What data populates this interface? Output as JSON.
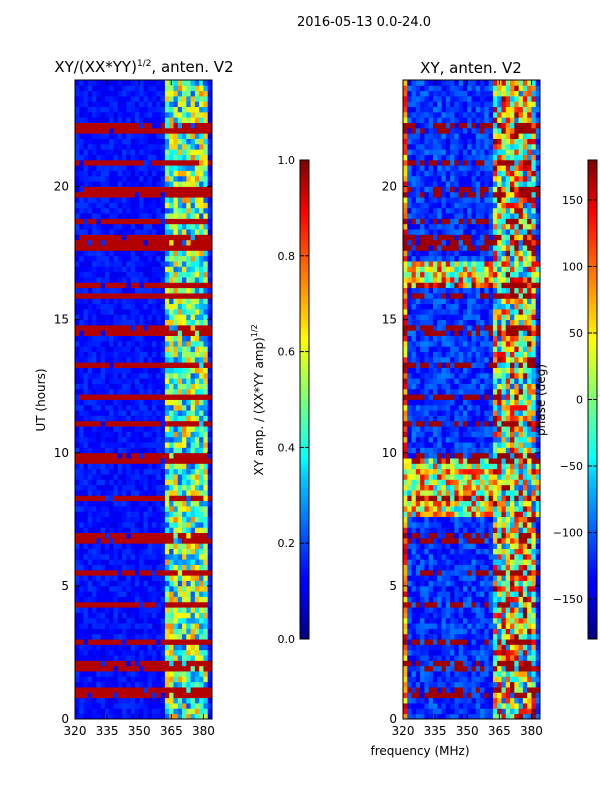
{
  "suptitle": "2016-05-13 0.0-24.0",
  "chart_data": [
    {
      "type": "heatmap",
      "title": "XY/(XX*YY)",
      "title_sup": "1/2",
      "title_suffix": ", anten. V2",
      "ylabel": "UT (hours)",
      "xlabel": "",
      "xlim": [
        320,
        384
      ],
      "ylim": [
        0,
        24
      ],
      "xticks": [
        320,
        335,
        350,
        365,
        380
      ],
      "yticks": [
        0,
        5,
        10,
        15,
        20
      ],
      "colorbar": {
        "label": "XY amp. / (XX*YY amp)",
        "label_sup": "1/2",
        "range": [
          0.0,
          1.0
        ],
        "ticks": [
          "0.0",
          "0.2",
          "0.4",
          "0.6",
          "0.8",
          "1.0"
        ]
      },
      "notes": "Mostly low values (~0.1) across 320-362 MHz; higher, noisy values (0.3-0.7) in 362-382 MHz band; horizontal saturated rows (1.0) at several times."
    },
    {
      "type": "heatmap",
      "title": "XY, anten. V2",
      "ylabel": "",
      "xlabel": "frequency (MHz)",
      "xlim": [
        320,
        384
      ],
      "ylim": [
        0,
        24
      ],
      "xticks": [
        320,
        335,
        350,
        365,
        380
      ],
      "yticks": [
        0,
        5,
        10,
        15,
        20
      ],
      "colorbar": {
        "label": "phase (deg)",
        "range": [
          -180,
          180
        ],
        "ticks": [
          "150",
          "100",
          "50",
          "0",
          "−50",
          "−100",
          "−150"
        ]
      },
      "notes": "Phase mostly near -150 deg at low frequencies; 362-382 MHz band and several time intervals show varied phases including +100 to +180 deg."
    }
  ]
}
